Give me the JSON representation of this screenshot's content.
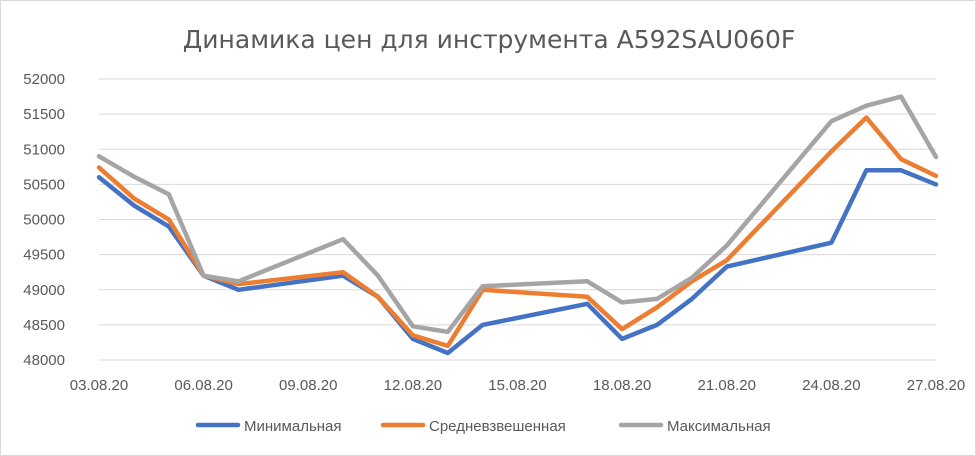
{
  "chart_data": {
    "type": "line",
    "title": "Динамика цен для инструмента A592SAU060F",
    "xlabel": "",
    "ylabel": "",
    "ylim": [
      48000,
      52000
    ],
    "yticks": [
      48000,
      48500,
      49000,
      49500,
      50000,
      50500,
      51000,
      51500,
      52000
    ],
    "xtick_labels": [
      "03.08.20",
      "06.08.20",
      "09.08.20",
      "12.08.20",
      "15.08.20",
      "18.08.20",
      "21.08.20",
      "24.08.20",
      "27.08.20"
    ],
    "x": [
      "03.08.20",
      "04.08.20",
      "05.08.20",
      "06.08.20",
      "07.08.20",
      "10.08.20",
      "11.08.20",
      "12.08.20",
      "13.08.20",
      "14.08.20",
      "17.08.20",
      "18.08.20",
      "19.08.20",
      "20.08.20",
      "21.08.20",
      "24.08.20",
      "25.08.20",
      "26.08.20",
      "27.08.20"
    ],
    "x_day_index": [
      0,
      1,
      2,
      3,
      4,
      7,
      8,
      9,
      10,
      11,
      14,
      15,
      16,
      17,
      18,
      21,
      22,
      23,
      24
    ],
    "grid": true,
    "legend_position": "bottom",
    "series": [
      {
        "name": "Минимальная",
        "color": "#4472c4",
        "values": [
          50600,
          50200,
          49900,
          49200,
          49000,
          49200,
          48900,
          48300,
          48100,
          48500,
          48800,
          48300,
          48500,
          48870,
          49330,
          49670,
          50700,
          50700,
          50500
        ]
      },
      {
        "name": "Средневзвешенная",
        "color": "#ed7d31",
        "values": [
          50740,
          50300,
          50000,
          49200,
          49080,
          49250,
          48900,
          48350,
          48200,
          49000,
          48900,
          48440,
          48750,
          49120,
          49420,
          50970,
          51450,
          50860,
          50620
        ]
      },
      {
        "name": "Максимальная",
        "color": "#a5a5a5",
        "values": [
          50900,
          50610,
          50360,
          49200,
          49120,
          49720,
          49200,
          48480,
          48400,
          49050,
          49120,
          48820,
          48870,
          49170,
          49630,
          51400,
          51620,
          51750,
          50890
        ]
      }
    ]
  }
}
